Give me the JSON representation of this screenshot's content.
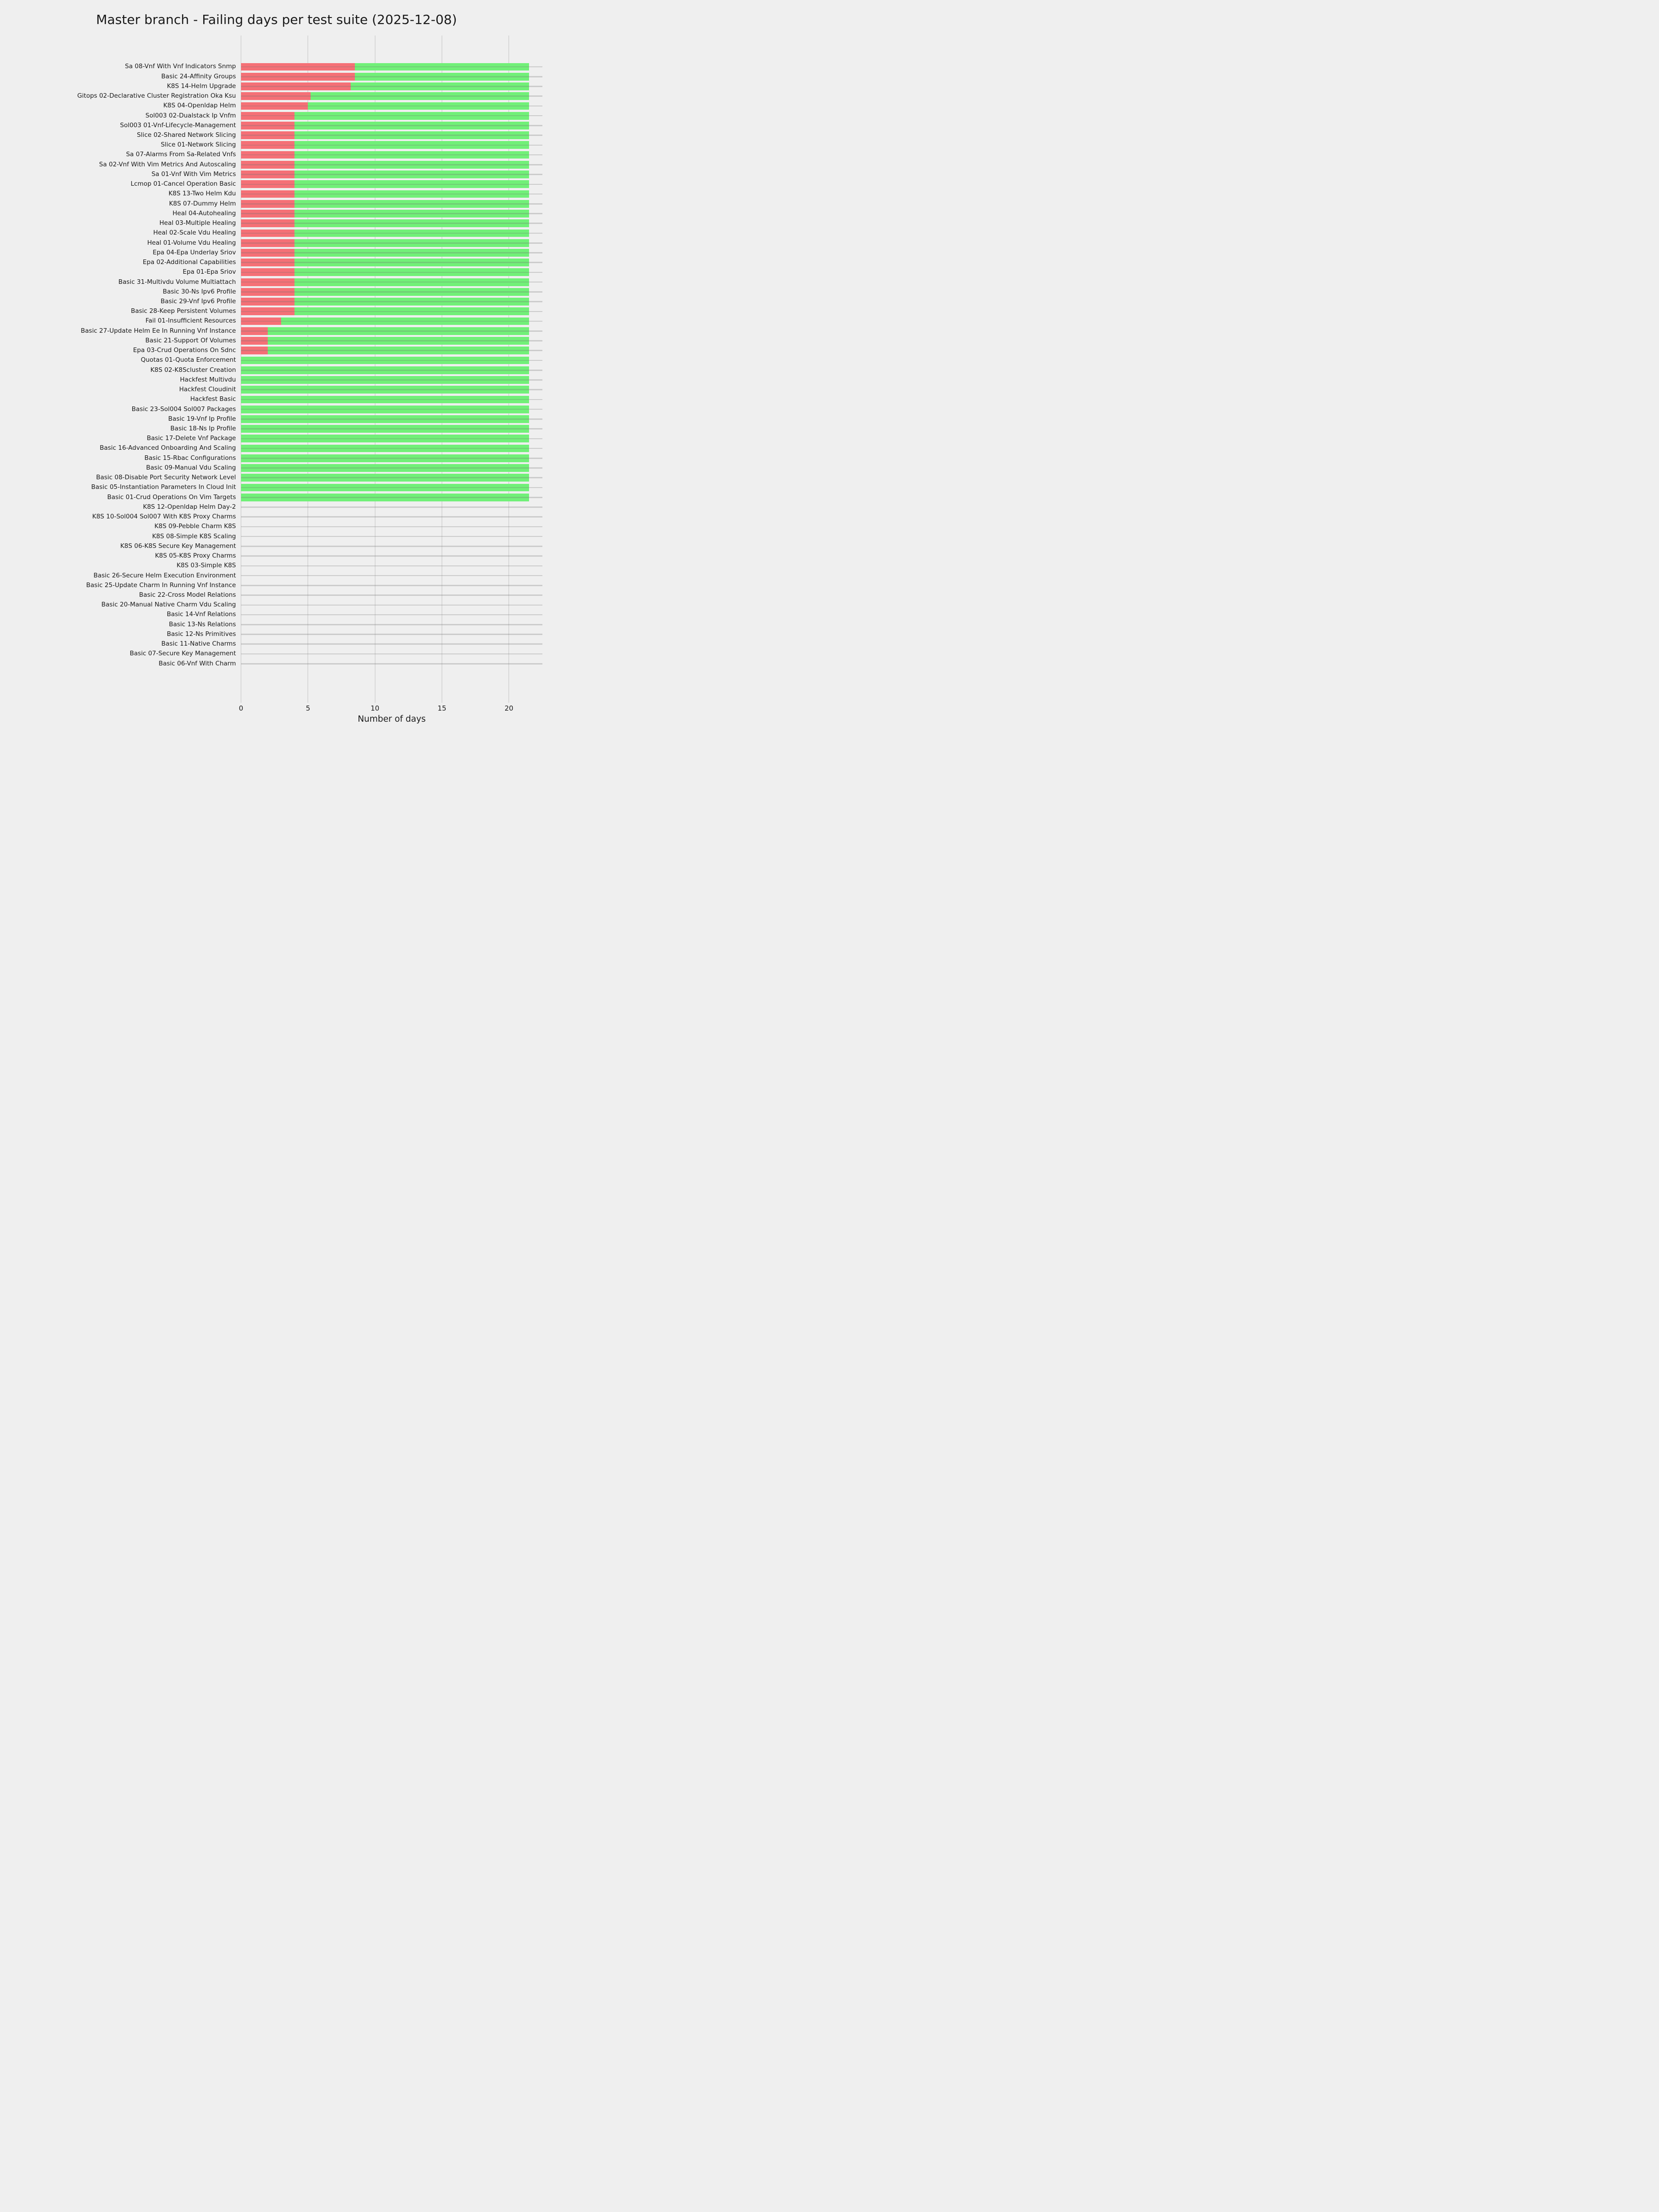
{
  "chart_data": {
    "type": "bar",
    "orientation": "horizontal",
    "stacked": true,
    "title": "Master branch - Failing days per test suite (2025-12-08)",
    "xlabel": "Number of days",
    "xlim": [
      0,
      21.7
    ],
    "xticks": [
      0,
      5,
      10,
      15,
      20
    ],
    "grid": true,
    "legend": "none",
    "bar_total_days": 21.5,
    "series_meta": [
      {
        "name": "failing-days",
        "color": "#f57076"
      },
      {
        "name": "passing-days",
        "color": "#71f078"
      }
    ],
    "colors": {
      "failing": "#f57076",
      "passing": "#71f078",
      "vertical_grid": "#d9d9d9",
      "row_line": "rgba(115,115,115,0.28)",
      "background": "#efefef",
      "text": "#1a1a1a"
    },
    "rows": [
      {
        "label": "Sa 08-Vnf With Vnf Indicators Snmp",
        "failing": 8.5,
        "passing": 13.0
      },
      {
        "label": "Basic 24-Affinity Groups",
        "failing": 8.5,
        "passing": 13.0
      },
      {
        "label": "K8S 14-Helm Upgrade",
        "failing": 8.2,
        "passing": 13.3
      },
      {
        "label": "Gitops 02-Declarative Cluster Registration Oka Ksu",
        "failing": 5.2,
        "passing": 16.3
      },
      {
        "label": "K8S 04-Openldap Helm",
        "failing": 5.0,
        "passing": 16.5
      },
      {
        "label": "Sol003 02-Dualstack Ip Vnfm",
        "failing": 4.0,
        "passing": 17.5
      },
      {
        "label": "Sol003 01-Vnf-Lifecycle-Management",
        "failing": 4.0,
        "passing": 17.5
      },
      {
        "label": "Slice 02-Shared Network Slicing",
        "failing": 4.0,
        "passing": 17.5
      },
      {
        "label": "Slice 01-Network Slicing",
        "failing": 4.0,
        "passing": 17.5
      },
      {
        "label": "Sa 07-Alarms From Sa-Related Vnfs",
        "failing": 4.0,
        "passing": 17.5
      },
      {
        "label": "Sa 02-Vnf With Vim Metrics And Autoscaling",
        "failing": 4.0,
        "passing": 17.5
      },
      {
        "label": "Sa 01-Vnf With Vim Metrics",
        "failing": 4.0,
        "passing": 17.5
      },
      {
        "label": "Lcmop 01-Cancel Operation Basic",
        "failing": 4.0,
        "passing": 17.5
      },
      {
        "label": "K8S 13-Two Helm Kdu",
        "failing": 4.0,
        "passing": 17.5
      },
      {
        "label": "K8S 07-Dummy Helm",
        "failing": 4.0,
        "passing": 17.5
      },
      {
        "label": "Heal 04-Autohealing",
        "failing": 4.0,
        "passing": 17.5
      },
      {
        "label": "Heal 03-Multiple Healing",
        "failing": 4.0,
        "passing": 17.5
      },
      {
        "label": "Heal 02-Scale Vdu Healing",
        "failing": 4.0,
        "passing": 17.5
      },
      {
        "label": "Heal 01-Volume Vdu Healing",
        "failing": 4.0,
        "passing": 17.5
      },
      {
        "label": "Epa 04-Epa Underlay Sriov",
        "failing": 4.0,
        "passing": 17.5
      },
      {
        "label": "Epa 02-Additional Capabilities",
        "failing": 4.0,
        "passing": 17.5
      },
      {
        "label": "Epa 01-Epa Sriov",
        "failing": 4.0,
        "passing": 17.5
      },
      {
        "label": "Basic 31-Multivdu Volume Multiattach",
        "failing": 4.0,
        "passing": 17.5
      },
      {
        "label": "Basic 30-Ns Ipv6 Profile",
        "failing": 4.0,
        "passing": 17.5
      },
      {
        "label": "Basic 29-Vnf Ipv6 Profile",
        "failing": 4.0,
        "passing": 17.5
      },
      {
        "label": "Basic 28-Keep Persistent Volumes",
        "failing": 4.0,
        "passing": 17.5
      },
      {
        "label": "Fail 01-Insufficient Resources",
        "failing": 3.0,
        "passing": 18.5
      },
      {
        "label": "Basic 27-Update Helm Ee In Running Vnf Instance",
        "failing": 2.0,
        "passing": 19.5
      },
      {
        "label": "Basic 21-Support Of Volumes",
        "failing": 2.0,
        "passing": 19.5
      },
      {
        "label": "Epa 03-Crud Operations On Sdnc",
        "failing": 2.0,
        "passing": 19.5
      },
      {
        "label": "Quotas 01-Quota Enforcement",
        "failing": 0,
        "passing": 21.5
      },
      {
        "label": "K8S 02-K8Scluster Creation",
        "failing": 0,
        "passing": 21.5
      },
      {
        "label": "Hackfest Multivdu",
        "failing": 0,
        "passing": 21.5
      },
      {
        "label": "Hackfest Cloudinit",
        "failing": 0,
        "passing": 21.5
      },
      {
        "label": "Hackfest Basic",
        "failing": 0,
        "passing": 21.5
      },
      {
        "label": "Basic 23-Sol004 Sol007 Packages",
        "failing": 0,
        "passing": 21.5
      },
      {
        "label": "Basic 19-Vnf Ip Profile",
        "failing": 0,
        "passing": 21.5
      },
      {
        "label": "Basic 18-Ns Ip Profile",
        "failing": 0,
        "passing": 21.5
      },
      {
        "label": "Basic 17-Delete Vnf Package",
        "failing": 0,
        "passing": 21.5
      },
      {
        "label": "Basic 16-Advanced Onboarding And Scaling",
        "failing": 0,
        "passing": 21.5
      },
      {
        "label": "Basic 15-Rbac Configurations",
        "failing": 0,
        "passing": 21.5
      },
      {
        "label": "Basic 09-Manual Vdu Scaling",
        "failing": 0,
        "passing": 21.5
      },
      {
        "label": "Basic 08-Disable Port Security Network Level",
        "failing": 0,
        "passing": 21.5
      },
      {
        "label": "Basic 05-Instantiation Parameters In Cloud Init",
        "failing": 0,
        "passing": 21.5
      },
      {
        "label": "Basic 01-Crud Operations On Vim Targets",
        "failing": 0,
        "passing": 21.5
      },
      {
        "label": "K8S 12-Openldap Helm Day-2",
        "failing": 0,
        "passing": 0
      },
      {
        "label": "K8S 10-Sol004 Sol007 With K8S Proxy Charms",
        "failing": 0,
        "passing": 0
      },
      {
        "label": "K8S 09-Pebble Charm K8S",
        "failing": 0,
        "passing": 0
      },
      {
        "label": "K8S 08-Simple K8S Scaling",
        "failing": 0,
        "passing": 0
      },
      {
        "label": "K8S 06-K8S Secure Key Management",
        "failing": 0,
        "passing": 0
      },
      {
        "label": "K8S 05-K8S Proxy Charms",
        "failing": 0,
        "passing": 0
      },
      {
        "label": "K8S 03-Simple K8S",
        "failing": 0,
        "passing": 0
      },
      {
        "label": "Basic 26-Secure Helm Execution Environment",
        "failing": 0,
        "passing": 0
      },
      {
        "label": "Basic 25-Update Charm In Running Vnf Instance",
        "failing": 0,
        "passing": 0
      },
      {
        "label": "Basic 22-Cross Model Relations",
        "failing": 0,
        "passing": 0
      },
      {
        "label": "Basic 20-Manual Native Charm Vdu Scaling",
        "failing": 0,
        "passing": 0
      },
      {
        "label": "Basic 14-Vnf Relations",
        "failing": 0,
        "passing": 0
      },
      {
        "label": "Basic 13-Ns Relations",
        "failing": 0,
        "passing": 0
      },
      {
        "label": "Basic 12-Ns Primitives",
        "failing": 0,
        "passing": 0
      },
      {
        "label": "Basic 11-Native Charms",
        "failing": 0,
        "passing": 0
      },
      {
        "label": "Basic 07-Secure Key Management",
        "failing": 0,
        "passing": 0
      },
      {
        "label": "Basic 06-Vnf With Charm",
        "failing": 0,
        "passing": 0
      }
    ]
  }
}
